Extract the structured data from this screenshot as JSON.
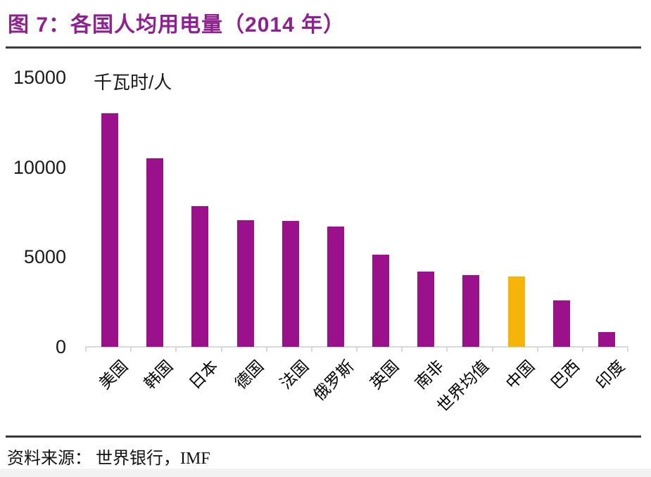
{
  "title": "图 7：各国人均用电量（2014 年）",
  "unit_label": "千瓦时/人",
  "source": "资料来源： 世界银行，IMF",
  "colors": {
    "title": "#8e2190",
    "bar": "#9b118c",
    "highlight_bar": "#f6b40a",
    "axis": "#d9d9d9",
    "text": "#1a1a1a"
  },
  "chart_data": {
    "type": "bar",
    "title": "各国人均用电量（2014 年）",
    "categories": [
      "美国",
      "韩国",
      "日本",
      "德国",
      "法国",
      "俄罗斯",
      "英国",
      "南非",
      "世界均值",
      "中国",
      "巴西",
      "印度"
    ],
    "values": [
      13000,
      10500,
      7850,
      7050,
      7000,
      6700,
      5150,
      4200,
      4000,
      3900,
      2600,
      820
    ],
    "highlight_index": 9,
    "highlight_category": "中国",
    "xlabel": "",
    "ylabel": "千瓦时/人",
    "ylim": [
      0,
      15000
    ],
    "y_ticks": [
      15000,
      10000,
      5000,
      0
    ],
    "grid": false,
    "legend": "none",
    "x_tick_rotation_deg": 45
  }
}
